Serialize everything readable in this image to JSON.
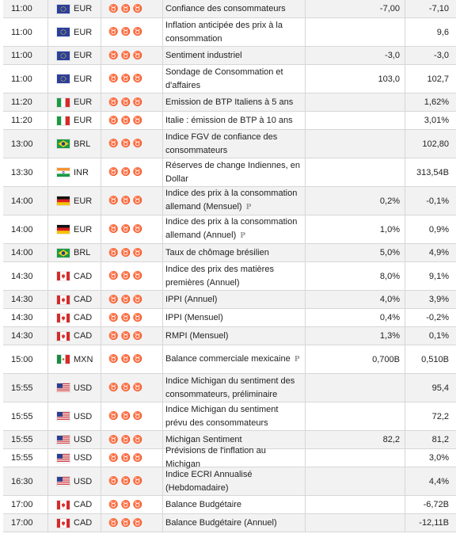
{
  "rows": [
    {
      "time": "11:00",
      "country": "eu",
      "currency": "EUR",
      "importance": 1,
      "event": "Confiance des consommateurs",
      "prelim": false,
      "actual": "",
      "forecast": "-7,00",
      "previous": "-7,10"
    },
    {
      "time": "11:00",
      "country": "eu",
      "currency": "EUR",
      "importance": 1,
      "event": "Inflation anticipée des prix à la consommation",
      "prelim": false,
      "actual": "",
      "forecast": "",
      "previous": "9,6"
    },
    {
      "time": "11:00",
      "country": "eu",
      "currency": "EUR",
      "importance": 1,
      "event": "Sentiment industriel",
      "prelim": false,
      "actual": "",
      "forecast": "-3,0",
      "previous": "-3,0"
    },
    {
      "time": "11:00",
      "country": "eu",
      "currency": "EUR",
      "importance": 1,
      "event": "Sondage de Consommation et d'affaires",
      "prelim": false,
      "actual": "",
      "forecast": "103,0",
      "previous": "102,7"
    },
    {
      "time": "11:20",
      "country": "it",
      "currency": "EUR",
      "importance": 1,
      "event": "Emission de BTP Italiens à 5 ans",
      "prelim": false,
      "actual": "",
      "forecast": "",
      "previous": "1,62%"
    },
    {
      "time": "11:20",
      "country": "it",
      "currency": "EUR",
      "importance": 1,
      "event": "Italie : émission de BTP à 10 ans",
      "prelim": false,
      "actual": "",
      "forecast": "",
      "previous": "3,01%"
    },
    {
      "time": "13:00",
      "country": "br",
      "currency": "BRL",
      "importance": 1,
      "event": "Indice FGV de confiance des consommateurs",
      "prelim": false,
      "actual": "",
      "forecast": "",
      "previous": "102,80"
    },
    {
      "time": "13:30",
      "country": "in",
      "currency": "INR",
      "importance": 1,
      "event": "Réserves de change Indiennes, en Dollar",
      "prelim": false,
      "actual": "",
      "forecast": "",
      "previous": "313,54B"
    },
    {
      "time": "14:00",
      "country": "de",
      "currency": "EUR",
      "importance": 2,
      "event": "Indice des prix à la consommation allemand (Mensuel)",
      "prelim": true,
      "actual": "",
      "forecast": "0,2%",
      "previous": "-0,1%"
    },
    {
      "time": "14:00",
      "country": "de",
      "currency": "EUR",
      "importance": 2,
      "event": "Indice des prix à la consommation allemand (Annuel)",
      "prelim": true,
      "actual": "",
      "forecast": "1,0%",
      "previous": "0,9%"
    },
    {
      "time": "14:00",
      "country": "br",
      "currency": "BRL",
      "importance": 1,
      "event": "Taux de chômage brésilien",
      "prelim": false,
      "actual": "",
      "forecast": "5,0%",
      "previous": "4,9%"
    },
    {
      "time": "14:30",
      "country": "ca",
      "currency": "CAD",
      "importance": 1,
      "event": "Indice des prix des matières premières (Annuel)",
      "prelim": false,
      "actual": "",
      "forecast": "8,0%",
      "previous": "9,1%"
    },
    {
      "time": "14:30",
      "country": "ca",
      "currency": "CAD",
      "importance": 1,
      "event": "IPPI (Annuel)",
      "prelim": false,
      "actual": "",
      "forecast": "4,0%",
      "previous": "3,9%"
    },
    {
      "time": "14:30",
      "country": "ca",
      "currency": "CAD",
      "importance": 1,
      "event": "IPPI (Mensuel)",
      "prelim": false,
      "actual": "",
      "forecast": "0,4%",
      "previous": "-0,2%"
    },
    {
      "time": "14:30",
      "country": "ca",
      "currency": "CAD",
      "importance": 1,
      "event": "RMPI (Mensuel)",
      "prelim": false,
      "actual": "",
      "forecast": "1,3%",
      "previous": "0,1%"
    },
    {
      "time": "15:00",
      "country": "mx",
      "currency": "MXN",
      "importance": 1,
      "event": "Balance commerciale mexicaine",
      "prelim": true,
      "actual": "",
      "forecast": "0,700B",
      "previous": "0,510B"
    },
    {
      "time": "15:55",
      "country": "us",
      "currency": "USD",
      "importance": 2,
      "event": "Indice Michigan du sentiment des consommateurs, préliminaire",
      "prelim": false,
      "actual": "",
      "forecast": "",
      "previous": "95,4"
    },
    {
      "time": "15:55",
      "country": "us",
      "currency": "USD",
      "importance": 1,
      "event": "Indice Michigan du sentiment prévu des consommateurs",
      "prelim": false,
      "actual": "",
      "forecast": "",
      "previous": "72,2"
    },
    {
      "time": "15:55",
      "country": "us",
      "currency": "USD",
      "importance": 2,
      "event": "Michigan Sentiment",
      "prelim": false,
      "actual": "",
      "forecast": "82,2",
      "previous": "81,2"
    },
    {
      "time": "15:55",
      "country": "us",
      "currency": "USD",
      "importance": 1,
      "event": "Prévisions de l'inflation au Michigan",
      "prelim": false,
      "actual": "",
      "forecast": "",
      "previous": "3,0%"
    },
    {
      "time": "16:30",
      "country": "us",
      "currency": "USD",
      "importance": 1,
      "event": "Indice ECRI Annualisé (Hebdomadaire)",
      "prelim": false,
      "actual": "",
      "forecast": "",
      "previous": "4,4%"
    },
    {
      "time": "17:00",
      "country": "ca",
      "currency": "CAD",
      "importance": 1,
      "event": "Balance Budgétaire",
      "prelim": false,
      "actual": "",
      "forecast": "",
      "previous": "-6,72B"
    },
    {
      "time": "17:00",
      "country": "ca",
      "currency": "CAD",
      "importance": 1,
      "event": "Balance Budgétaire (Annuel)",
      "prelim": false,
      "actual": "",
      "forecast": "",
      "previous": "-12,11B"
    }
  ],
  "labels": {
    "prelim_marker": "P",
    "bull_glyph": "♉"
  }
}
